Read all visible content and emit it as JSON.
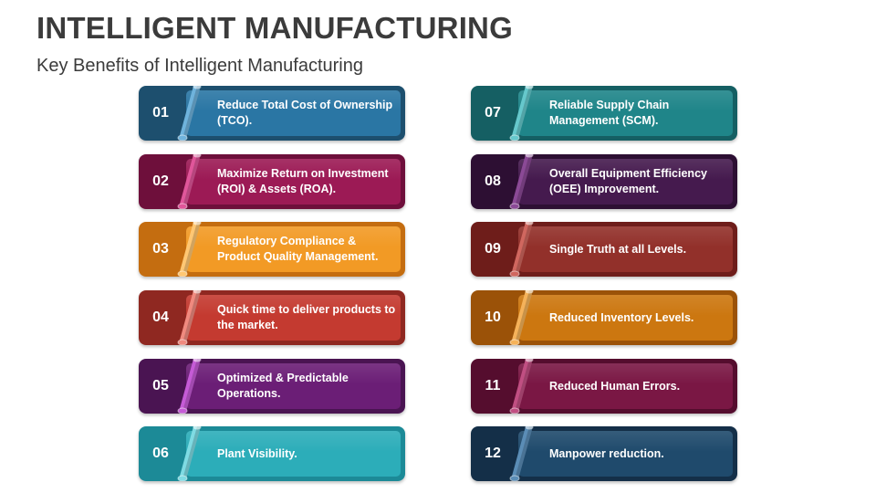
{
  "slide": {
    "title": "INTELLIGENT MANUFACTURING",
    "subtitle": "Key Benefits of Intelligent Manufacturing"
  },
  "cards": [
    {
      "number": "01",
      "text": "Reduce Total Cost of Ownership (TCO).",
      "dark": "#1d4f6e",
      "light": "#2a76a4",
      "accent": "#6fb3dc"
    },
    {
      "number": "02",
      "text": "Maximize Return on Investment (ROI) & Assets (ROA).",
      "dark": "#6e0f3b",
      "light": "#9c1a55",
      "accent": "#e0569a"
    },
    {
      "number": "03",
      "text": "Regulatory Compliance & Product Quality Management.",
      "dark": "#c46d10",
      "light": "#f29a25",
      "accent": "#ffc773"
    },
    {
      "number": "04",
      "text": "Quick time to deliver products to the market.",
      "dark": "#8f2821",
      "light": "#c43a30",
      "accent": "#f08a7f"
    },
    {
      "number": "05",
      "text": "Optimized & Predictable Operations.",
      "dark": "#4a1452",
      "light": "#6b1e76",
      "accent": "#c55bd6"
    },
    {
      "number": "06",
      "text": "Plant Visibility.",
      "dark": "#1c8a97",
      "light": "#2cadb9",
      "accent": "#7fdbe3"
    },
    {
      "number": "07",
      "text": "Reliable Supply Chain Management (SCM).",
      "dark": "#155f63",
      "light": "#1f8589",
      "accent": "#66c8cc"
    },
    {
      "number": "08",
      "text": "Overall Equipment Efficiency (OEE) Improvement.",
      "dark": "#2d0f33",
      "light": "#451a4e",
      "accent": "#8b4a96"
    },
    {
      "number": "09",
      "text": "Single Truth at all Levels.",
      "dark": "#6e1d1a",
      "light": "#92302a",
      "accent": "#d0675f"
    },
    {
      "number": "10",
      "text": "Reduced Inventory Levels.",
      "dark": "#9b5208",
      "light": "#cc7710",
      "accent": "#f5b25a"
    },
    {
      "number": "11",
      "text": "Reduced Human Errors.",
      "dark": "#550d2e",
      "light": "#7a1744",
      "accent": "#c04f82"
    },
    {
      "number": "12",
      "text": "Manpower reduction.",
      "dark": "#142f48",
      "light": "#1f4a6c",
      "accent": "#5b8db6"
    }
  ]
}
